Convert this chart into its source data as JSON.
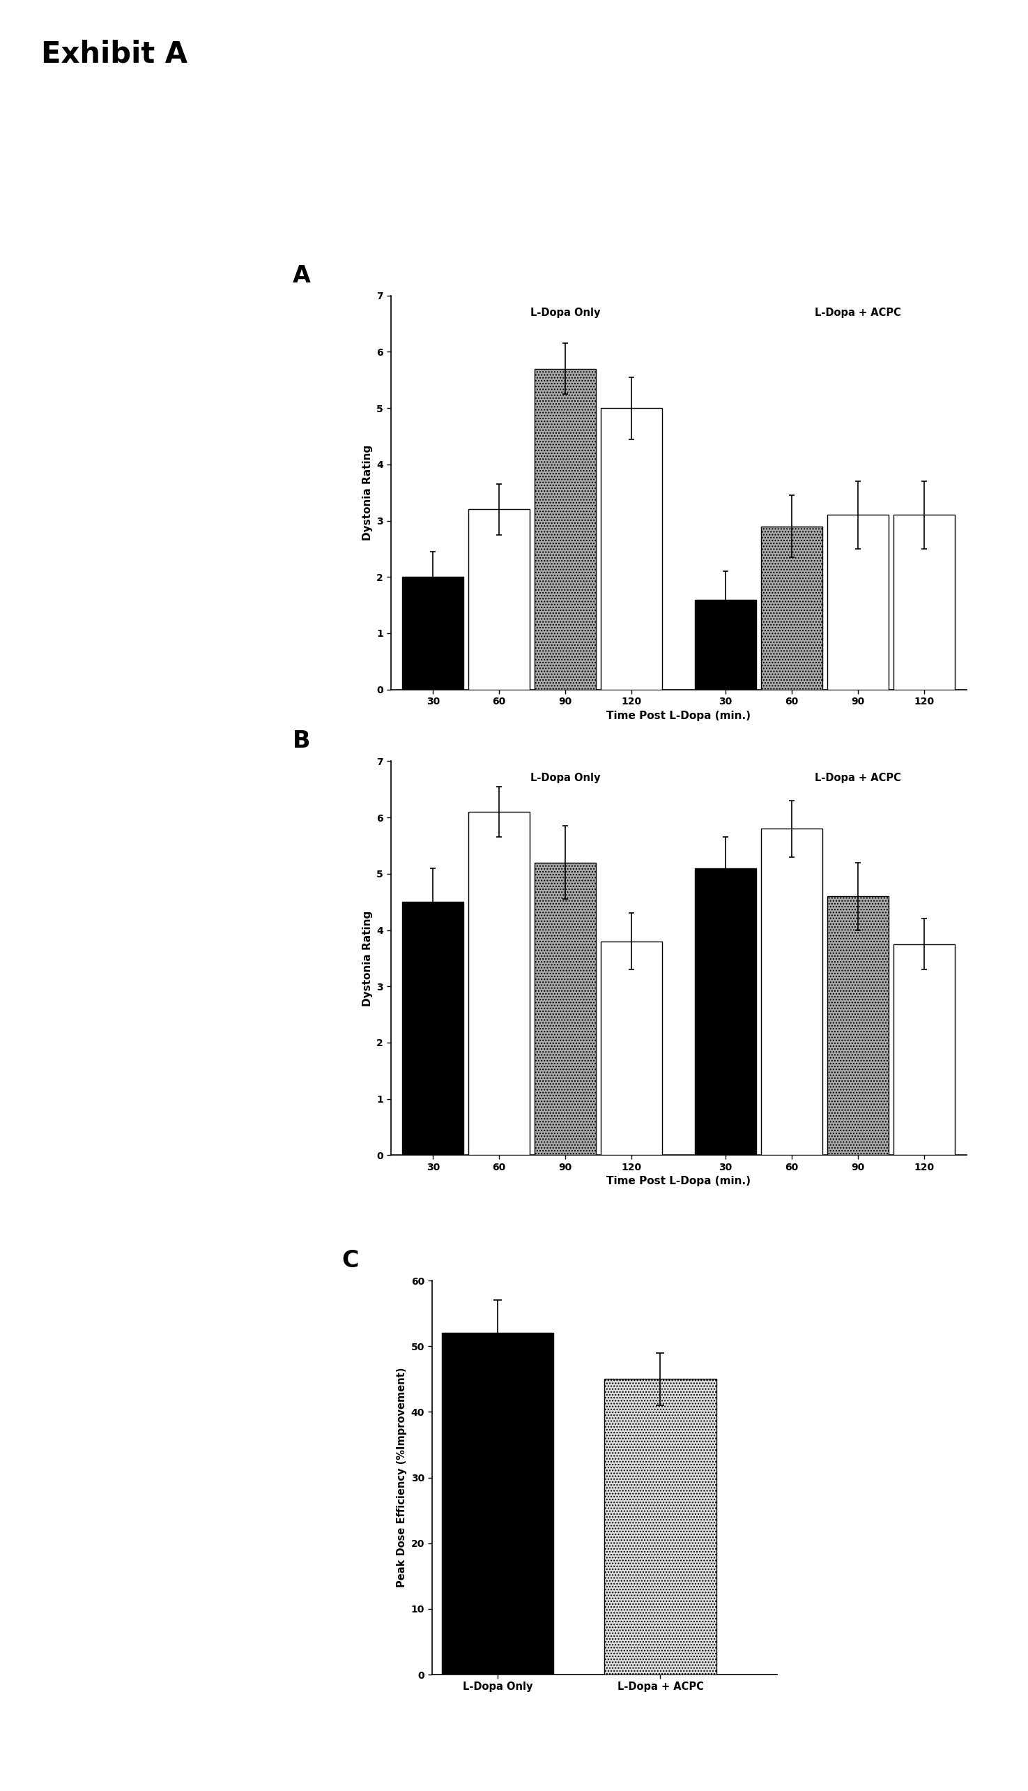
{
  "title": "Exhibit A",
  "panel_A": {
    "label": "A",
    "ldopa_only": [
      {
        "val": 2.0,
        "err": 0.45
      },
      {
        "val": 3.2,
        "err": 0.45
      },
      {
        "val": 5.7,
        "err": 0.45
      },
      {
        "val": 5.0,
        "err": 0.55
      }
    ],
    "ldopa_acpc": [
      {
        "val": 1.6,
        "err": 0.5
      },
      {
        "val": 2.9,
        "err": 0.55
      },
      {
        "val": 3.1,
        "err": 0.6
      },
      {
        "val": 3.1,
        "err": 0.6
      }
    ],
    "ylim": [
      0,
      7
    ],
    "yticks": [
      0,
      1,
      2,
      3,
      4,
      5,
      6,
      7
    ],
    "ylabel": "Dystonia Rating",
    "xlabel": "Time Post L-Dopa (min.)",
    "xtick_labels": [
      "30",
      "60",
      "90",
      "120",
      "30",
      "60",
      "90",
      "120"
    ],
    "legend1": "L-Dopa Only",
    "legend2": "L-Dopa + ACPC",
    "ldopa_only_styles": [
      {
        "color": "#000000",
        "hatch": null
      },
      {
        "color": "#ffffff",
        "hatch": null
      },
      {
        "color": "#aaaaaa",
        "hatch": "...."
      },
      {
        "color": "#ffffff",
        "hatch": null
      }
    ],
    "ldopa_acpc_styles": [
      {
        "color": "#000000",
        "hatch": null
      },
      {
        "color": "#aaaaaa",
        "hatch": "...."
      },
      {
        "color": "#ffffff",
        "hatch": null
      },
      {
        "color": "#ffffff",
        "hatch": null
      }
    ]
  },
  "panel_B": {
    "label": "B",
    "ldopa_only": [
      {
        "val": 4.5,
        "err": 0.6
      },
      {
        "val": 6.1,
        "err": 0.45
      },
      {
        "val": 5.2,
        "err": 0.65
      },
      {
        "val": 3.8,
        "err": 0.5
      }
    ],
    "ldopa_acpc": [
      {
        "val": 5.1,
        "err": 0.55
      },
      {
        "val": 5.8,
        "err": 0.5
      },
      {
        "val": 4.6,
        "err": 0.6
      },
      {
        "val": 3.75,
        "err": 0.45
      }
    ],
    "ylim": [
      0,
      7
    ],
    "yticks": [
      0,
      1,
      2,
      3,
      4,
      5,
      6,
      7
    ],
    "ylabel": "Dystonia Rating",
    "xlabel": "Time Post L-Dopa (min.)",
    "xtick_labels": [
      "30",
      "60",
      "90",
      "120",
      "30",
      "60",
      "90",
      "120"
    ],
    "legend1": "L-Dopa Only",
    "legend2": "L-Dopa + ACPC",
    "ldopa_only_styles": [
      {
        "color": "#000000",
        "hatch": null
      },
      {
        "color": "#ffffff",
        "hatch": null
      },
      {
        "color": "#aaaaaa",
        "hatch": "...."
      },
      {
        "color": "#ffffff",
        "hatch": null
      }
    ],
    "ldopa_acpc_styles": [
      {
        "color": "#000000",
        "hatch": null
      },
      {
        "color": "#ffffff",
        "hatch": null
      },
      {
        "color": "#aaaaaa",
        "hatch": "...."
      },
      {
        "color": "#ffffff",
        "hatch": null
      }
    ]
  },
  "panel_C": {
    "label": "C",
    "bars": [
      {
        "label": "L-Dopa Only",
        "val": 52.0,
        "err": 5.0,
        "color": "#000000",
        "hatch": null
      },
      {
        "label": "L-Dopa + ACPC",
        "val": 45.0,
        "err": 4.0,
        "color": "#dddddd",
        "hatch": "...."
      }
    ],
    "ylim": [
      0,
      60
    ],
    "yticks": [
      0,
      10,
      20,
      30,
      40,
      50,
      60
    ],
    "ylabel": "Peak Dose Efficiency (%Improvement)"
  }
}
